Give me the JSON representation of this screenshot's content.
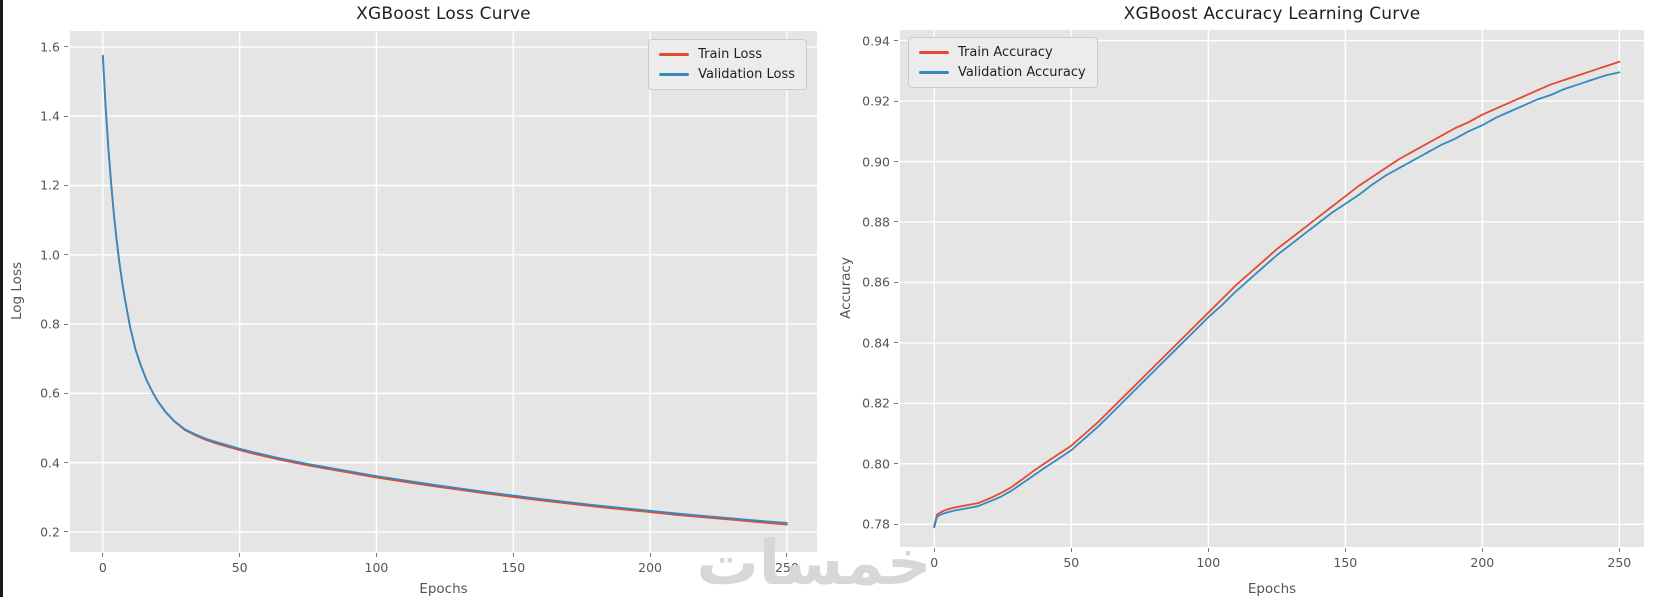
{
  "page": {
    "watermark": "خمسات"
  },
  "colors": {
    "train": "#E24A33",
    "validation": "#348ABD",
    "axes_bg": "#E5E5E5",
    "grid": "#FFFFFF",
    "tick_text": "#555555",
    "title_text": "#1F1F1F",
    "legend_bg": "#ECECEC",
    "legend_border": "#CBCBCB",
    "screen_edge": "#181818",
    "watermark": "#D7D7D7"
  },
  "chart_data": [
    {
      "type": "line",
      "title": "XGBoost Loss Curve",
      "xlabel": "Epochs",
      "ylabel": "Log Loss",
      "legend_position": "top-right",
      "grid": true,
      "xlim": [
        -12,
        261
      ],
      "ylim": [
        0.142,
        1.646
      ],
      "xticks": [
        0,
        50,
        100,
        150,
        200,
        250
      ],
      "xtick_labels": [
        "0",
        "50",
        "100",
        "150",
        "200",
        "250"
      ],
      "yticks": [
        0.2,
        0.4,
        0.6,
        0.8,
        1.0,
        1.2,
        1.4,
        1.6
      ],
      "ytick_labels": [
        "0.2",
        "0.4",
        "0.6",
        "0.8",
        "1.0",
        "1.2",
        "1.4",
        "1.6"
      ],
      "x": [
        0,
        1,
        2,
        3,
        4,
        5,
        6,
        7,
        8,
        10,
        12,
        14,
        16,
        18,
        20,
        23,
        26,
        30,
        34,
        38,
        42,
        46,
        50,
        55,
        60,
        65,
        70,
        75,
        80,
        85,
        90,
        95,
        100,
        110,
        120,
        130,
        140,
        150,
        160,
        170,
        180,
        190,
        200,
        210,
        220,
        230,
        240,
        250
      ],
      "series": [
        {
          "name": "Train Loss",
          "color_key": "train",
          "values": [
            1.575,
            1.43,
            1.31,
            1.21,
            1.12,
            1.045,
            0.98,
            0.925,
            0.875,
            0.79,
            0.725,
            0.678,
            0.638,
            0.606,
            0.578,
            0.545,
            0.52,
            0.494,
            0.478,
            0.465,
            0.454,
            0.445,
            0.436,
            0.426,
            0.417,
            0.408,
            0.4,
            0.392,
            0.385,
            0.378,
            0.371,
            0.364,
            0.357,
            0.345,
            0.333,
            0.322,
            0.311,
            0.301,
            0.291,
            0.282,
            0.273,
            0.265,
            0.257,
            0.249,
            0.242,
            0.235,
            0.228,
            0.221
          ]
        },
        {
          "name": "Validation Loss",
          "color_key": "validation",
          "values": [
            1.575,
            1.43,
            1.31,
            1.21,
            1.12,
            1.045,
            0.98,
            0.925,
            0.875,
            0.79,
            0.725,
            0.678,
            0.638,
            0.606,
            0.578,
            0.546,
            0.521,
            0.496,
            0.481,
            0.468,
            0.458,
            0.449,
            0.44,
            0.43,
            0.421,
            0.412,
            0.404,
            0.396,
            0.389,
            0.382,
            0.375,
            0.368,
            0.361,
            0.349,
            0.337,
            0.326,
            0.315,
            0.305,
            0.295,
            0.286,
            0.277,
            0.269,
            0.261,
            0.253,
            0.246,
            0.239,
            0.232,
            0.226
          ]
        }
      ]
    },
    {
      "type": "line",
      "title": "XGBoost Accuracy Learning Curve",
      "xlabel": "Epochs",
      "ylabel": "Accuracy",
      "legend_position": "top-left",
      "grid": true,
      "xlim": [
        -12.5,
        259
      ],
      "ylim": [
        0.7725,
        0.9435
      ],
      "xticks": [
        0,
        50,
        100,
        150,
        200,
        250
      ],
      "xtick_labels": [
        "0",
        "50",
        "100",
        "150",
        "200",
        "250"
      ],
      "yticks": [
        0.78,
        0.8,
        0.82,
        0.84,
        0.86,
        0.88,
        0.9,
        0.92,
        0.94
      ],
      "ytick_labels": [
        "0.78",
        "0.80",
        "0.82",
        "0.84",
        "0.86",
        "0.88",
        "0.90",
        "0.92",
        "0.94"
      ],
      "x": [
        0,
        1,
        2,
        3,
        5,
        7,
        10,
        13,
        16,
        20,
        24,
        28,
        32,
        36,
        40,
        45,
        50,
        55,
        60,
        65,
        70,
        75,
        80,
        85,
        90,
        95,
        100,
        105,
        110,
        115,
        120,
        125,
        130,
        135,
        140,
        145,
        150,
        155,
        160,
        165,
        170,
        175,
        180,
        185,
        190,
        195,
        200,
        205,
        210,
        215,
        220,
        225,
        230,
        235,
        240,
        245,
        250
      ],
      "series": [
        {
          "name": "Train Accuracy",
          "color_key": "train",
          "values": [
            0.7795,
            0.7832,
            0.7838,
            0.7843,
            0.785,
            0.7855,
            0.786,
            0.7865,
            0.787,
            0.7885,
            0.7902,
            0.7922,
            0.7948,
            0.7975,
            0.8,
            0.803,
            0.806,
            0.81,
            0.814,
            0.8185,
            0.823,
            0.8275,
            0.832,
            0.8365,
            0.841,
            0.8455,
            0.85,
            0.8545,
            0.859,
            0.863,
            0.867,
            0.871,
            0.8745,
            0.878,
            0.8815,
            0.885,
            0.8885,
            0.892,
            0.895,
            0.898,
            0.901,
            0.9035,
            0.906,
            0.9085,
            0.911,
            0.913,
            0.9155,
            0.9175,
            0.9195,
            0.9215,
            0.9235,
            0.9255,
            0.927,
            0.9285,
            0.93,
            0.9315,
            0.933
          ]
        },
        {
          "name": "Validation Accuracy",
          "color_key": "validation",
          "values": [
            0.779,
            0.7825,
            0.783,
            0.7835,
            0.784,
            0.7845,
            0.785,
            0.7855,
            0.786,
            0.7875,
            0.789,
            0.791,
            0.7935,
            0.796,
            0.7985,
            0.8015,
            0.8045,
            0.8085,
            0.8125,
            0.817,
            0.8215,
            0.826,
            0.8305,
            0.835,
            0.8395,
            0.844,
            0.8485,
            0.8525,
            0.857,
            0.861,
            0.865,
            0.869,
            0.8725,
            0.876,
            0.8795,
            0.883,
            0.886,
            0.889,
            0.8925,
            0.8955,
            0.898,
            0.9005,
            0.903,
            0.9055,
            0.9075,
            0.91,
            0.912,
            0.9145,
            0.9165,
            0.9185,
            0.9205,
            0.922,
            0.924,
            0.9255,
            0.927,
            0.9285,
            0.9295
          ]
        }
      ]
    }
  ]
}
